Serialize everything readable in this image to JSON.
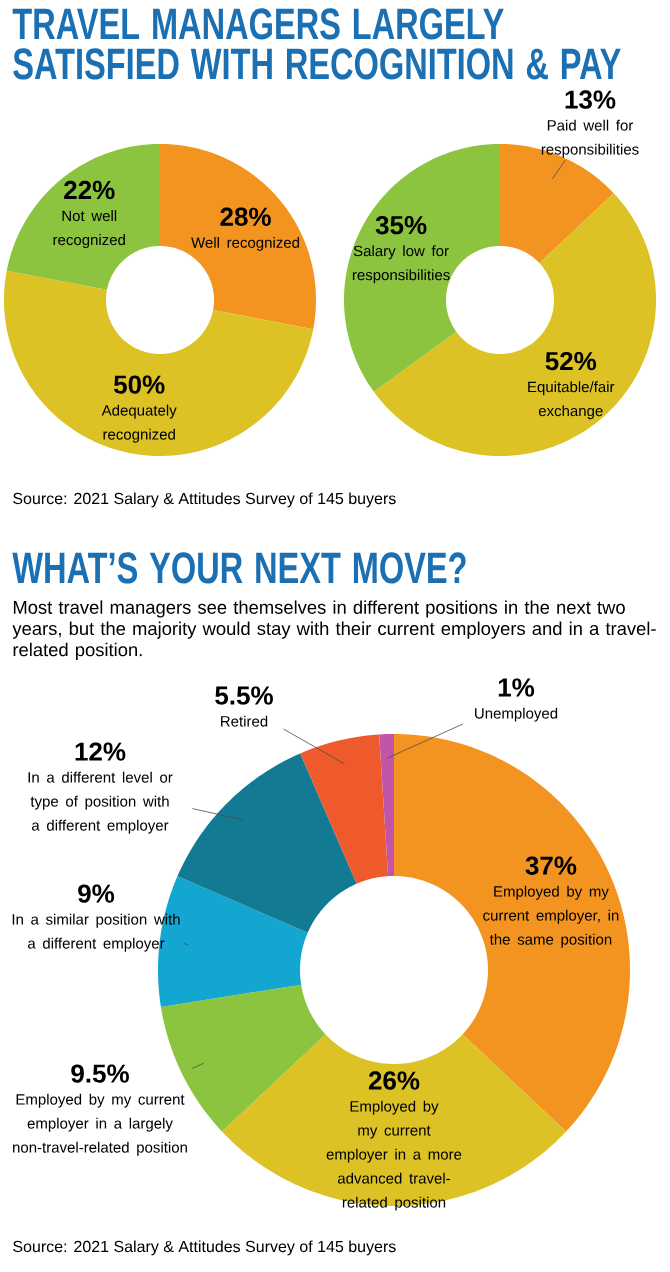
{
  "chart_data": [
    {
      "type": "donut",
      "title": "TRAVEL MANAGERS LARGELY SATISFIED WITH RECOGNITION & PAY",
      "categories": [
        "Well recognized",
        "Adequately recognized",
        "Not well recognized"
      ],
      "values": [
        28,
        50,
        22
      ],
      "colors": [
        "#f39420",
        "#dcc224",
        "#8cc43f"
      ],
      "value_labels": [
        "28%",
        "50%",
        "22%"
      ]
    },
    {
      "type": "donut",
      "categories": [
        "Paid well for responsibilities",
        "Equitable/fair exchange",
        "Salary low for responsibilities"
      ],
      "values": [
        13,
        52,
        35
      ],
      "colors": [
        "#f39420",
        "#dcc224",
        "#8cc43f"
      ],
      "value_labels": [
        "13%",
        "52%",
        "35%"
      ],
      "annotations": [
        "Source: 2021 Salary & Attitudes Survey of 145 buyers"
      ]
    },
    {
      "type": "donut",
      "title": "WHAT’S YOUR NEXT MOVE?",
      "subtitle": "Most travel managers see themselves in different positions in the next two years, but the majority would stay with their current employers and in a travel-related position.",
      "categories": [
        "Employed by my current employer, in the same position",
        "Employed by my current employer in a more advanced travel-related position",
        "Employed by my current employer in a largely non-travel-related position",
        "In a similar position with a different employer",
        "In a different level or type of position with a different employer",
        "Retired",
        "Unemployed"
      ],
      "values": [
        37,
        26,
        9.5,
        9,
        12,
        5.5,
        1
      ],
      "colors": [
        "#f39420",
        "#dcc224",
        "#8cc43f",
        "#12a6d0",
        "#137a94",
        "#ee5a2c",
        "#c355a8"
      ],
      "value_labels": [
        "37%",
        "26%",
        "9.5%",
        "9%",
        "12%",
        "5.5%",
        "1%"
      ],
      "annotations": [
        "Source: 2021 Salary & Attitudes Survey of 145 buyers"
      ]
    }
  ]
}
